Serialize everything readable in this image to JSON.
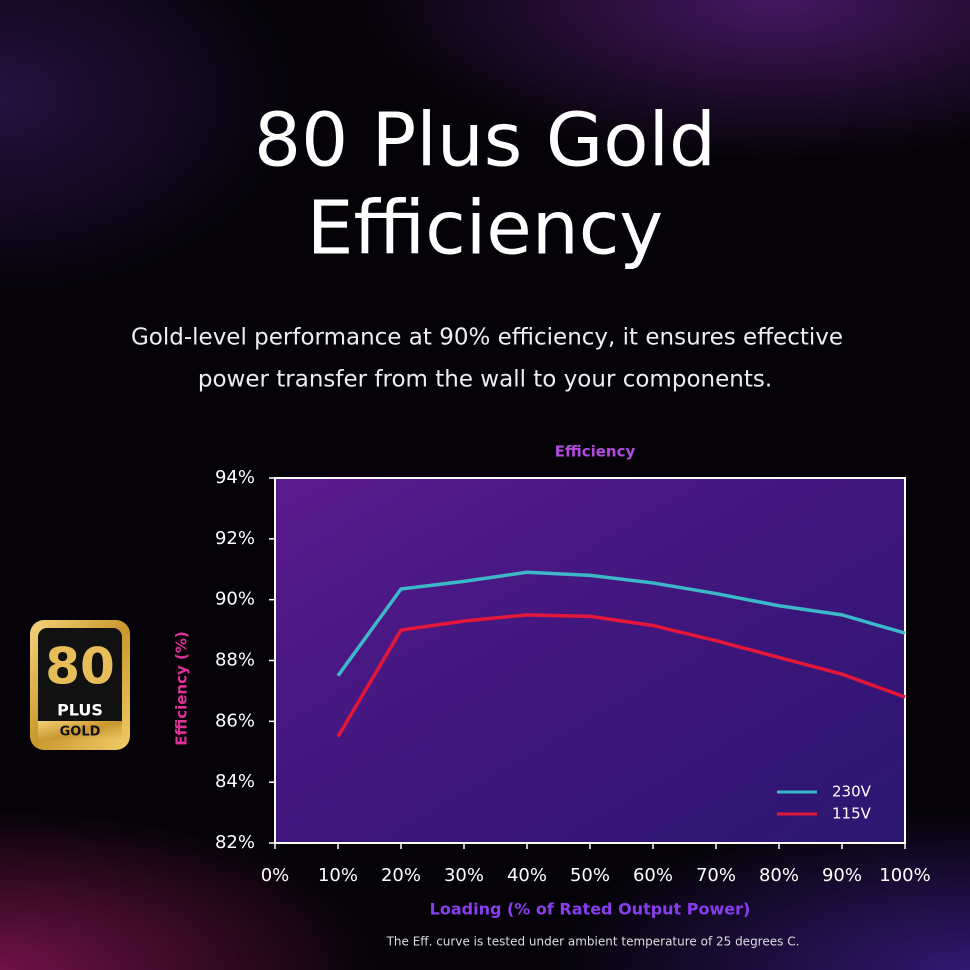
{
  "header": {
    "title_lines": [
      "80 Plus Gold",
      "Efficiency"
    ],
    "description_lines": [
      "Gold-level performance at 90% efficiency, it ensures effective",
      "power transfer from the wall to your components."
    ]
  },
  "badge": {
    "number": "80",
    "brand": "PLUS",
    "level": "GOLD"
  },
  "chart_data": {
    "type": "line",
    "title": "Efficiency",
    "x_label": "Loading (% of Rated Output Power)",
    "y_label": "Efficiency (%)",
    "x": [
      10,
      20,
      30,
      40,
      50,
      60,
      70,
      80,
      90,
      100
    ],
    "series": [
      {
        "name": "230V",
        "color": "#3db8c8",
        "values": [
          87.5,
          90.35,
          90.6,
          90.9,
          90.8,
          90.55,
          90.2,
          89.8,
          89.5,
          88.9
        ]
      },
      {
        "name": "115V",
        "color": "#e3173a",
        "values": [
          85.5,
          89.0,
          89.3,
          89.5,
          89.45,
          89.15,
          88.65,
          88.1,
          87.55,
          86.8
        ]
      }
    ],
    "xlim": [
      0,
      100
    ],
    "xticks": [
      {
        "value": 0,
        "label": "0%"
      },
      {
        "value": 10,
        "label": "10%"
      },
      {
        "value": 20,
        "label": "20%"
      },
      {
        "value": 30,
        "label": "30%"
      },
      {
        "value": 40,
        "label": "40%"
      },
      {
        "value": 50,
        "label": "50%"
      },
      {
        "value": 60,
        "label": "60%"
      },
      {
        "value": 70,
        "label": "70%"
      },
      {
        "value": 80,
        "label": "80%"
      },
      {
        "value": 90,
        "label": "90%"
      },
      {
        "value": 100,
        "label": "100%"
      }
    ],
    "ylim": [
      82,
      94
    ],
    "yticks": [
      {
        "value": 82,
        "label": "82%"
      },
      {
        "value": 84,
        "label": "84%"
      },
      {
        "value": 86,
        "label": "86%"
      },
      {
        "value": 88,
        "label": "88%"
      },
      {
        "value": 90,
        "label": "90%"
      },
      {
        "value": 92,
        "label": "92%"
      },
      {
        "value": 94,
        "label": "94%"
      }
    ],
    "grid": false,
    "legend": "lower right"
  },
  "footnote": "The Eff. curve is tested under ambient temperature of 25 degrees C."
}
